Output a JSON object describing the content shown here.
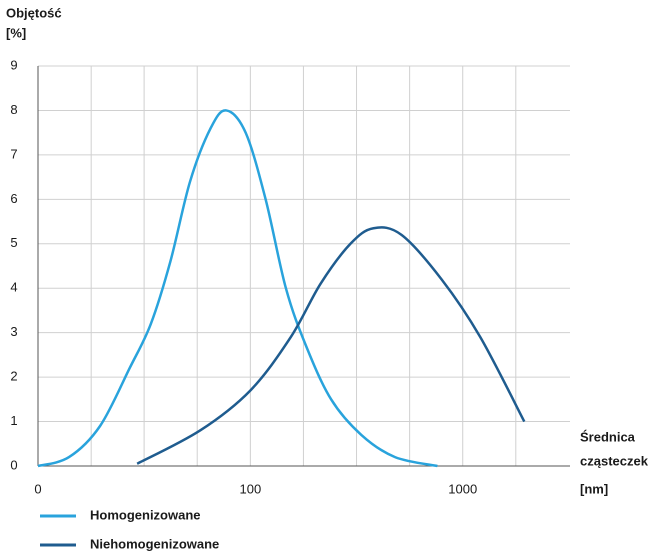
{
  "chart_data": {
    "type": "line",
    "y_label": [
      "Objętość",
      "[%]"
    ],
    "x_label": [
      "Średnica",
      "cząsteczek",
      "[nm]"
    ],
    "log_x": true,
    "grid": true,
    "xlim": [
      10,
      3200
    ],
    "ylim": [
      0,
      9
    ],
    "xticks": [
      {
        "value": 10,
        "label": "0"
      },
      100,
      1000
    ],
    "xgrid": [
      17.8,
      31.6,
      56.2,
      100,
      177.8,
      316.2,
      562.3,
      1000,
      1778
    ],
    "yticks": [
      0,
      1,
      2,
      3,
      4,
      5,
      6,
      7,
      8,
      9
    ],
    "series": [
      {
        "name": "Homogenizowane",
        "color": "#29a3dc",
        "x": [
          10,
          14,
          19.6,
          27,
          34,
          42,
          52,
          65,
          77,
          95,
          118,
          147,
          183,
          240,
          333,
          480,
          760
        ],
        "values": [
          0,
          0.2,
          0.9,
          2.2,
          3.2,
          4.6,
          6.4,
          7.6,
          8.0,
          7.5,
          6.0,
          4.0,
          2.7,
          1.5,
          0.7,
          0.2,
          0
        ]
      },
      {
        "name": "Niehomogenizowane",
        "color": "#1f5c8f",
        "x": [
          29.3,
          58,
          100,
          155,
          214,
          296,
          380,
          515,
          795,
          1210,
          1950
        ],
        "values": [
          0.05,
          0.8,
          1.7,
          2.9,
          4.1,
          5.0,
          5.35,
          5.2,
          4.2,
          2.9,
          1.0
        ]
      }
    ]
  }
}
